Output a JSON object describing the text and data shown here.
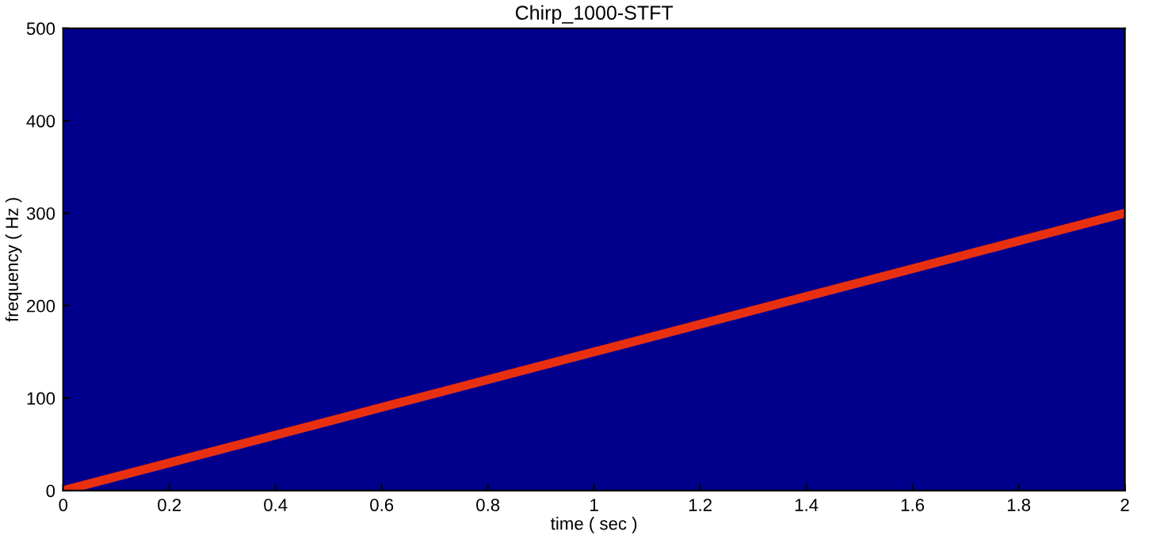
{
  "chart_data": {
    "type": "line",
    "title": "Chirp_1000-STFT",
    "xlabel": "time ( sec )",
    "ylabel": "frequency ( Hz )",
    "x": [
      0,
      0.5,
      1,
      1.5,
      2
    ],
    "series": [
      {
        "color": "#e83010",
        "values": [
          0,
          75,
          150,
          225,
          300
        ]
      }
    ],
    "xlim": [
      0,
      2
    ],
    "xticks": [
      0,
      0.2,
      0.4,
      0.6,
      0.8,
      1,
      1.2,
      1.4,
      1.6,
      1.8,
      2
    ],
    "ylim": [
      0,
      500
    ],
    "yticks": [
      0,
      100,
      200,
      300,
      400,
      500
    ],
    "grid": false
  }
}
